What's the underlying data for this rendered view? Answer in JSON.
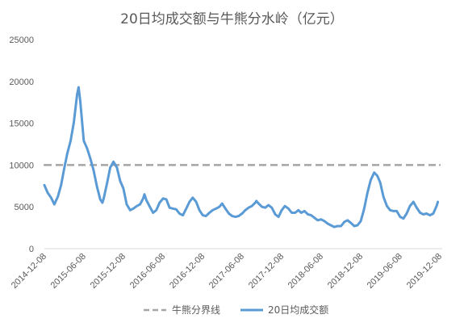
{
  "chart_data": {
    "type": "line",
    "title": "20日均成交额与牛熊分水岭（亿元）",
    "xlabel": "",
    "ylabel": "",
    "ylim": [
      0,
      25000
    ],
    "yticks": [
      0,
      5000,
      10000,
      15000,
      20000,
      25000
    ],
    "xlim": [
      "2014-12-08",
      "2019-12-08"
    ],
    "xticks": [
      "2014-12-08",
      "2015-06-08",
      "2015-12-08",
      "2016-06-08",
      "2016-12-08",
      "2017-06-08",
      "2017-12-08",
      "2018-06-08",
      "2018-12-08",
      "2019-06-08",
      "2019-12-08"
    ],
    "grid": false,
    "legend": "bottom",
    "series": [
      {
        "name": "牛熊分界线",
        "color": "#a5a5a5",
        "dashed": true,
        "x": [
          "2014-12-08",
          "2019-12-08"
        ],
        "values": [
          10000,
          10000
        ]
      },
      {
        "name": "20日均成交额",
        "color": "#5b9bd5",
        "dashed": false,
        "x": [
          "2014-12-08",
          "2014-12-23",
          "2015-01-08",
          "2015-01-23",
          "2015-02-08",
          "2015-02-23",
          "2015-03-08",
          "2015-03-23",
          "2015-04-08",
          "2015-04-23",
          "2015-05-08",
          "2015-05-15",
          "2015-05-23",
          "2015-06-08",
          "2015-06-23",
          "2015-07-08",
          "2015-07-23",
          "2015-08-08",
          "2015-08-23",
          "2015-09-02",
          "2015-09-08",
          "2015-09-23",
          "2015-10-08",
          "2015-10-23",
          "2015-11-08",
          "2015-11-23",
          "2015-12-08",
          "2015-12-23",
          "2016-01-08",
          "2016-01-23",
          "2016-02-08",
          "2016-02-23",
          "2016-03-08",
          "2016-03-14",
          "2016-03-23",
          "2016-04-08",
          "2016-04-23",
          "2016-05-08",
          "2016-05-23",
          "2016-06-08",
          "2016-06-23",
          "2016-07-08",
          "2016-07-23",
          "2016-08-08",
          "2016-08-23",
          "2016-09-08",
          "2016-09-23",
          "2016-10-08",
          "2016-10-23",
          "2016-11-08",
          "2016-11-23",
          "2016-12-08",
          "2016-12-23",
          "2017-01-08",
          "2017-01-23",
          "2017-02-08",
          "2017-02-23",
          "2017-03-08",
          "2017-03-23",
          "2017-04-08",
          "2017-04-23",
          "2017-05-08",
          "2017-05-23",
          "2017-06-08",
          "2017-06-23",
          "2017-07-08",
          "2017-07-23",
          "2017-08-08",
          "2017-08-13",
          "2017-08-23",
          "2017-09-08",
          "2017-09-23",
          "2017-10-08",
          "2017-10-23",
          "2017-11-08",
          "2017-11-23",
          "2017-12-08",
          "2017-12-23",
          "2018-01-08",
          "2018-01-23",
          "2018-02-08",
          "2018-02-23",
          "2018-03-08",
          "2018-03-23",
          "2018-04-08",
          "2018-04-23",
          "2018-05-08",
          "2018-05-23",
          "2018-06-08",
          "2018-06-23",
          "2018-07-08",
          "2018-07-23",
          "2018-08-08",
          "2018-08-23",
          "2018-09-08",
          "2018-09-23",
          "2018-10-08",
          "2018-10-23",
          "2018-11-08",
          "2018-11-23",
          "2018-12-08",
          "2018-12-23",
          "2019-01-08",
          "2019-01-23",
          "2019-02-08",
          "2019-02-23",
          "2019-03-08",
          "2019-03-23",
          "2019-04-08",
          "2019-04-23",
          "2019-05-08",
          "2019-05-23",
          "2019-06-08",
          "2019-06-23",
          "2019-07-08",
          "2019-07-23",
          "2019-08-08",
          "2019-08-23",
          "2019-09-08",
          "2019-09-23",
          "2019-10-08",
          "2019-10-23",
          "2019-11-08",
          "2019-11-23",
          "2019-11-29"
        ],
        "values": [
          7600,
          6700,
          6100,
          5300,
          6200,
          7600,
          9400,
          11300,
          12900,
          15100,
          18400,
          19300,
          17600,
          12900,
          12000,
          10800,
          9400,
          7400,
          5900,
          5500,
          6000,
          7800,
          9700,
          10400,
          9700,
          8100,
          7200,
          5300,
          4600,
          4800,
          5100,
          5300,
          6000,
          6500,
          5800,
          5000,
          4300,
          4600,
          5500,
          6000,
          5900,
          4900,
          4800,
          4700,
          4200,
          4000,
          4800,
          5600,
          6100,
          5600,
          4600,
          4000,
          3900,
          4300,
          4600,
          4800,
          5000,
          5400,
          4800,
          4200,
          3900,
          3800,
          3900,
          4200,
          4600,
          4900,
          5100,
          5500,
          5700,
          5400,
          5000,
          4900,
          5200,
          4900,
          4100,
          3800,
          4600,
          5100,
          4800,
          4300,
          4300,
          4600,
          4300,
          4500,
          4100,
          4000,
          3700,
          3400,
          3500,
          3300,
          3000,
          2800,
          2600,
          2700,
          2700,
          3200,
          3400,
          3100,
          2700,
          2800,
          3300,
          4700,
          6700,
          8200,
          9100,
          8700,
          7900,
          6200,
          5100,
          4600,
          4500,
          4500,
          3800,
          3600,
          4200,
          5100,
          5600,
          4900,
          4300,
          4100,
          4200,
          4000,
          4200,
          5100,
          5600
        ]
      }
    ]
  }
}
